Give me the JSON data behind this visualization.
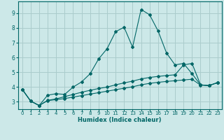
{
  "xlabel": "Humidex (Indice chaleur)",
  "bg_color": "#cce8e8",
  "grid_color": "#aacccc",
  "line_color": "#006666",
  "xlim": [
    -0.5,
    23.5
  ],
  "ylim": [
    2.5,
    9.8
  ],
  "xticks": [
    0,
    1,
    2,
    3,
    4,
    5,
    6,
    7,
    8,
    9,
    10,
    11,
    12,
    13,
    14,
    15,
    16,
    17,
    18,
    19,
    20,
    21,
    22,
    23
  ],
  "yticks": [
    3,
    4,
    5,
    6,
    7,
    8,
    9
  ],
  "series1_x": [
    0,
    1,
    2,
    3,
    4,
    5,
    6,
    7,
    8,
    9,
    10,
    11,
    12,
    13,
    14,
    15,
    16,
    17,
    18,
    19,
    20,
    21,
    22,
    23
  ],
  "series1_y": [
    3.85,
    3.05,
    2.75,
    3.45,
    3.55,
    3.5,
    4.0,
    4.35,
    4.9,
    5.9,
    6.6,
    7.75,
    8.05,
    6.7,
    9.25,
    8.9,
    7.8,
    6.3,
    5.5,
    5.6,
    4.9,
    4.15,
    4.1,
    4.3
  ],
  "series2_x": [
    0,
    1,
    2,
    3,
    4,
    5,
    6,
    7,
    8,
    9,
    10,
    11,
    12,
    13,
    14,
    15,
    16,
    17,
    18,
    19,
    20,
    21,
    22,
    23
  ],
  "series2_y": [
    3.85,
    3.05,
    2.75,
    3.1,
    3.2,
    3.35,
    3.5,
    3.65,
    3.78,
    3.9,
    4.0,
    4.15,
    4.28,
    4.4,
    4.55,
    4.65,
    4.72,
    4.78,
    4.83,
    5.5,
    5.6,
    4.15,
    4.1,
    4.3
  ],
  "series3_x": [
    0,
    1,
    2,
    3,
    4,
    5,
    6,
    7,
    8,
    9,
    10,
    11,
    12,
    13,
    14,
    15,
    16,
    17,
    18,
    19,
    20,
    21,
    22,
    23
  ],
  "series3_y": [
    3.85,
    3.05,
    2.75,
    3.08,
    3.15,
    3.22,
    3.32,
    3.42,
    3.52,
    3.62,
    3.72,
    3.82,
    3.92,
    4.02,
    4.15,
    4.25,
    4.32,
    4.38,
    4.43,
    4.48,
    4.53,
    4.13,
    4.1,
    4.3
  ]
}
